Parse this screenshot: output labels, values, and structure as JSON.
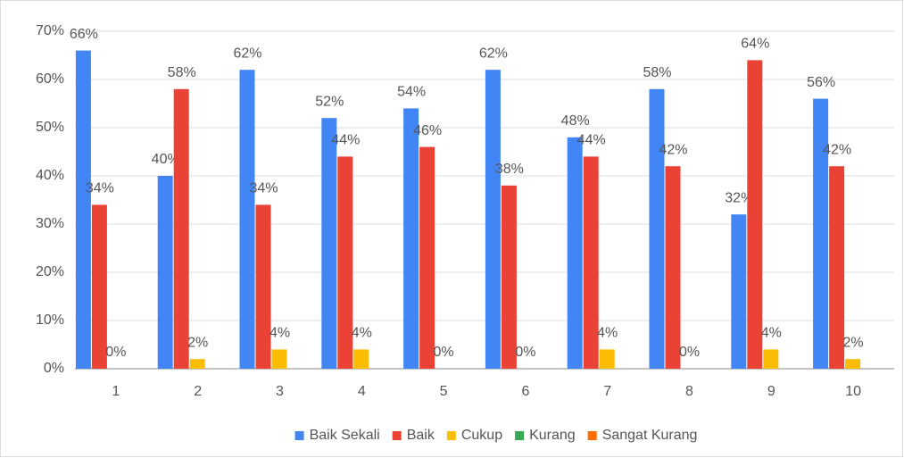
{
  "chart_data": {
    "type": "bar",
    "categories": [
      "1",
      "2",
      "3",
      "4",
      "5",
      "6",
      "7",
      "8",
      "9",
      "10"
    ],
    "series": [
      {
        "name": "Baik Sekali",
        "color": "#4285f4",
        "values": [
          66,
          40,
          62,
          52,
          54,
          62,
          48,
          58,
          32,
          56
        ],
        "value_labels": [
          "66%",
          "40%",
          "62%",
          "52%",
          "54%",
          "62%",
          "48%",
          "58%",
          "32%",
          "56%"
        ]
      },
      {
        "name": "Baik",
        "color": "#ea4335",
        "values": [
          34,
          58,
          34,
          44,
          46,
          38,
          44,
          42,
          64,
          42
        ],
        "value_labels": [
          "34%",
          "58%",
          "34%",
          "44%",
          "46%",
          "38%",
          "44%",
          "42%",
          "64%",
          "42%"
        ]
      },
      {
        "name": "Cukup",
        "color": "#fbbc04",
        "values": [
          0,
          2,
          4,
          4,
          0,
          0,
          4,
          0,
          4,
          2
        ],
        "value_labels": [
          "0%",
          "2%",
          "4%",
          "4%",
          "0%",
          "0%",
          "4%",
          "0%",
          "4%",
          "2%"
        ]
      },
      {
        "name": "Kurang",
        "color": "#34a853",
        "values": [
          0,
          0,
          0,
          0,
          0,
          0,
          0,
          0,
          0,
          0
        ]
      },
      {
        "name": "Sangat Kurang",
        "color": "#ff6d01",
        "values": [
          0,
          0,
          0,
          0,
          0,
          0,
          0,
          0,
          0,
          0
        ]
      }
    ],
    "ylim": [
      0,
      70
    ],
    "yticks": [
      {
        "value": 0,
        "label": "0%"
      },
      {
        "value": 10,
        "label": "10%"
      },
      {
        "value": 20,
        "label": "20%"
      },
      {
        "value": 30,
        "label": "30%"
      },
      {
        "value": 40,
        "label": "40%"
      },
      {
        "value": 50,
        "label": "50%"
      },
      {
        "value": 60,
        "label": "60%"
      },
      {
        "value": 70,
        "label": "70%"
      }
    ],
    "grid": true,
    "legend": "bottom"
  }
}
